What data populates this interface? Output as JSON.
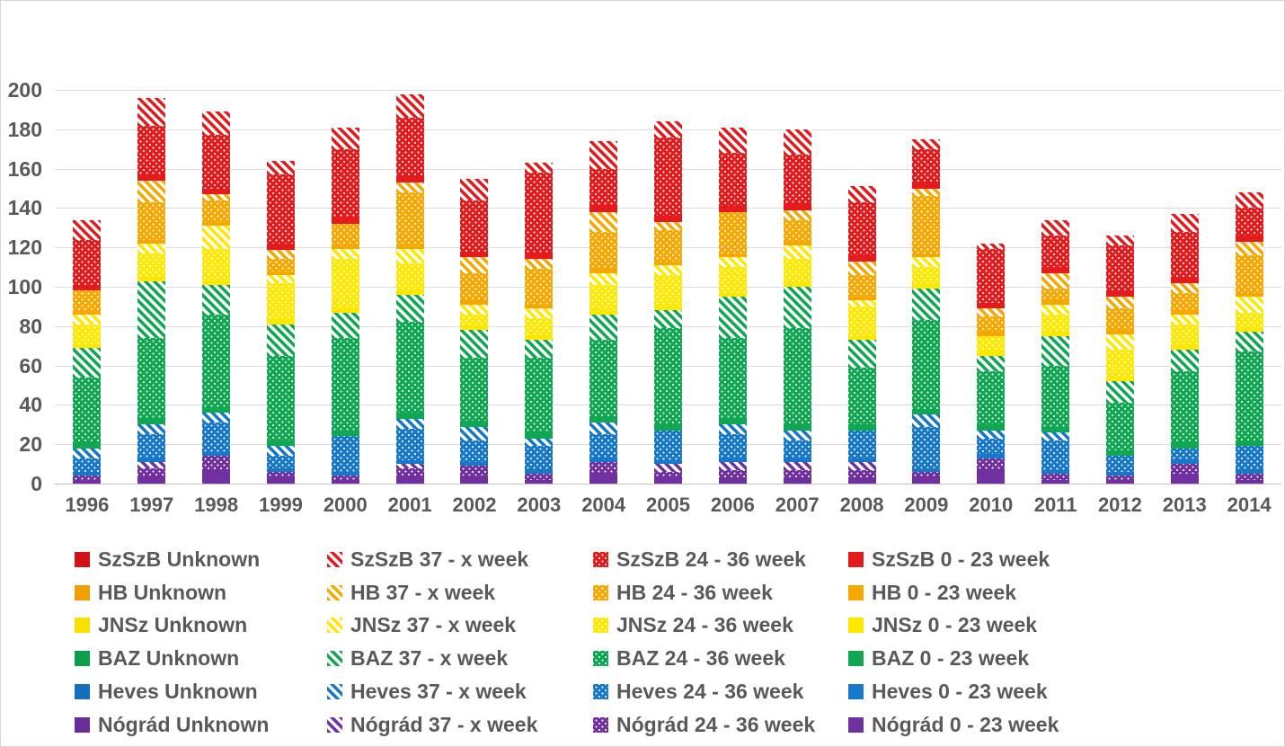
{
  "chart_data": {
    "type": "bar",
    "stacked": true,
    "title": "",
    "xlabel": "",
    "ylabel": "",
    "x": [
      "1996",
      "1997",
      "1998",
      "1999",
      "2000",
      "2001",
      "2002",
      "2003",
      "2004",
      "2005",
      "2006",
      "2007",
      "2008",
      "2009",
      "2010",
      "2011",
      "2012",
      "2013",
      "2014"
    ],
    "y_axis": {
      "min": 0,
      "max": 200,
      "ticks": [
        0,
        20,
        40,
        60,
        80,
        100,
        120,
        140,
        160,
        180,
        200
      ]
    },
    "grid": true,
    "legend_position": "bottom",
    "stack_note": "segments stack bottom-to-top in reverse legend order (Nógrád 0-23 at bottom, SzSzB Unknown at top)",
    "bar_totals": [
      134,
      196,
      189,
      164,
      181,
      198,
      155,
      163,
      174,
      184,
      181,
      180,
      151,
      175,
      122,
      134,
      126,
      137,
      148
    ],
    "series": [
      {
        "name": "SzSzB Unknown",
        "county": "SzSzB",
        "category": "Unknown",
        "pattern": "solid",
        "color": "#d31016",
        "values": [
          0,
          0,
          0,
          0,
          0,
          0,
          0,
          0,
          0,
          0,
          0,
          0,
          0,
          0,
          0,
          0,
          0,
          0,
          0
        ]
      },
      {
        "name": "SzSzB 37 - x week",
        "county": "SzSzB",
        "category": "37 - x week",
        "pattern": "stripe",
        "color": "#e41a1c",
        "values": [
          10,
          14,
          12,
          7,
          11,
          12,
          11,
          5,
          14,
          8,
          13,
          13,
          8,
          5,
          3,
          8,
          5,
          9,
          8
        ]
      },
      {
        "name": "SzSzB 24 - 36 week",
        "county": "SzSzB",
        "category": "24 - 36 week",
        "pattern": "dot",
        "color": "#e41a1c",
        "values": [
          23,
          25,
          27,
          35,
          35,
          30,
          26,
          41,
          19,
          40,
          27,
          25,
          27,
          17,
          27,
          16,
          23,
          23,
          14
        ]
      },
      {
        "name": "SzSzB 0 - 23 week",
        "county": "SzSzB",
        "category": "0 - 23 week",
        "pattern": "solid",
        "color": "#e41a1c",
        "values": [
          3,
          3,
          3,
          3,
          3,
          3,
          3,
          3,
          3,
          3,
          3,
          3,
          3,
          3,
          3,
          3,
          3,
          3,
          3
        ]
      },
      {
        "name": "HB Unknown",
        "county": "HB",
        "category": "Unknown",
        "pattern": "solid",
        "color": "#f09e00",
        "values": [
          0,
          0,
          0,
          0,
          0,
          0,
          0,
          0,
          0,
          0,
          0,
          0,
          0,
          0,
          0,
          0,
          0,
          0,
          0
        ]
      },
      {
        "name": "HB 37 - x week",
        "county": "HB",
        "category": "37 - x week",
        "pattern": "stripe",
        "color": "#f6a800",
        "values": [
          0,
          11,
          3,
          5,
          0,
          5,
          8,
          5,
          10,
          4,
          0,
          5,
          7,
          4,
          4,
          8,
          6,
          5,
          7
        ]
      },
      {
        "name": "HB 24 - 36 week",
        "county": "HB",
        "category": "24 - 36 week",
        "pattern": "dot",
        "color": "#f6a800",
        "values": [
          10,
          19,
          11,
          6,
          11,
          27,
          14,
          18,
          19,
          16,
          21,
          11,
          11,
          29,
          8,
          6,
          11,
          9,
          19
        ]
      },
      {
        "name": "HB 0 - 23 week",
        "county": "HB",
        "category": "0 - 23 week",
        "pattern": "solid",
        "color": "#f6a800",
        "values": [
          2,
          2,
          2,
          2,
          2,
          2,
          2,
          2,
          2,
          2,
          2,
          2,
          2,
          2,
          2,
          2,
          2,
          2,
          2
        ]
      },
      {
        "name": "JNSz Unknown",
        "county": "JNSz",
        "category": "Unknown",
        "pattern": "solid",
        "color": "#f7df00",
        "values": [
          0,
          0,
          0,
          0,
          0,
          0,
          0,
          0,
          0,
          0,
          0,
          0,
          0,
          0,
          0,
          0,
          0,
          0,
          0
        ]
      },
      {
        "name": "JNSz 37 - x week",
        "county": "JNSz",
        "category": "37 - x week",
        "pattern": "stripe",
        "color": "#ffe800",
        "values": [
          5,
          5,
          12,
          4,
          5,
          7,
          5,
          5,
          6,
          5,
          5,
          7,
          3,
          5,
          0,
          5,
          8,
          5,
          8
        ]
      },
      {
        "name": "JNSz 24 - 36 week",
        "county": "JNSz",
        "category": "24 - 36 week",
        "pattern": "dot",
        "color": "#ffe800",
        "values": [
          10,
          12,
          16,
          19,
          25,
          14,
          6,
          9,
          13,
          16,
          13,
          12,
          15,
          9,
          8,
          9,
          14,
          11,
          8
        ]
      },
      {
        "name": "JNSz 0 - 23 week",
        "county": "JNSz",
        "category": "0 - 23 week",
        "pattern": "solid",
        "color": "#ffe800",
        "values": [
          2,
          2,
          2,
          2,
          2,
          2,
          2,
          2,
          2,
          2,
          2,
          2,
          2,
          2,
          2,
          2,
          2,
          2,
          2
        ]
      },
      {
        "name": "BAZ Unknown",
        "county": "BAZ",
        "category": "Unknown",
        "pattern": "solid",
        "color": "#0d9e4c",
        "values": [
          0,
          0,
          0,
          0,
          0,
          0,
          0,
          0,
          0,
          0,
          0,
          0,
          0,
          0,
          0,
          0,
          0,
          0,
          0
        ]
      },
      {
        "name": "BAZ 37 - x week",
        "county": "BAZ",
        "category": "37 - x week",
        "pattern": "stripe",
        "color": "#0fa751",
        "values": [
          15,
          29,
          15,
          16,
          13,
          14,
          14,
          9,
          13,
          9,
          21,
          21,
          14,
          16,
          8,
          15,
          11,
          11,
          10
        ]
      },
      {
        "name": "BAZ 24 - 36 week",
        "county": "BAZ",
        "category": "24 - 36 week",
        "pattern": "dot",
        "color": "#0fa751",
        "values": [
          33,
          41,
          47,
          43,
          47,
          46,
          32,
          38,
          39,
          49,
          41,
          49,
          29,
          45,
          27,
          31,
          24,
          36,
          45
        ]
      },
      {
        "name": "BAZ 0 - 23 week",
        "county": "BAZ",
        "category": "0 - 23 week",
        "pattern": "solid",
        "color": "#0fa751",
        "values": [
          3,
          3,
          3,
          3,
          3,
          3,
          3,
          3,
          3,
          3,
          3,
          3,
          3,
          3,
          3,
          3,
          3,
          3,
          3
        ]
      },
      {
        "name": "Heves Unknown",
        "county": "Heves",
        "category": "Unknown",
        "pattern": "solid",
        "color": "#1470bd",
        "values": [
          0,
          0,
          0,
          0,
          0,
          0,
          0,
          0,
          0,
          0,
          0,
          0,
          0,
          0,
          0,
          0,
          0,
          0,
          0
        ]
      },
      {
        "name": "Heves 37 - x week",
        "county": "Heves",
        "category": "37 - x week",
        "pattern": "stripe",
        "color": "#1777c8",
        "values": [
          5,
          5,
          5,
          5,
          0,
          5,
          7,
          4,
          6,
          0,
          5,
          5,
          0,
          6,
          4,
          4,
          0,
          0,
          0
        ]
      },
      {
        "name": "Heves 24 - 36 week",
        "county": "Heves",
        "category": "24 - 36 week",
        "pattern": "dot",
        "color": "#1777c8",
        "values": [
          7,
          12,
          15,
          6,
          18,
          16,
          11,
          12,
          12,
          15,
          12,
          9,
          14,
          21,
          8,
          15,
          8,
          6,
          12
        ]
      },
      {
        "name": "Heves 0 - 23 week",
        "county": "Heves",
        "category": "0 - 23 week",
        "pattern": "solid",
        "color": "#1777c8",
        "values": [
          2,
          2,
          2,
          2,
          2,
          2,
          2,
          2,
          2,
          2,
          2,
          2,
          2,
          2,
          2,
          2,
          2,
          2,
          2
        ]
      },
      {
        "name": "Nógrád Unknown",
        "county": "Nógrád",
        "category": "Unknown",
        "pattern": "solid",
        "color": "#6a2d99",
        "values": [
          0,
          0,
          0,
          0,
          0,
          0,
          0,
          0,
          0,
          0,
          0,
          0,
          0,
          0,
          0,
          0,
          0,
          0,
          0
        ]
      },
      {
        "name": "Nógrád 37 - x week",
        "county": "Nógrád",
        "category": "37 - x week",
        "pattern": "stripe",
        "color": "#7030a0",
        "values": [
          0,
          3,
          0,
          0,
          0,
          2,
          0,
          0,
          0,
          4,
          4,
          4,
          4,
          0,
          0,
          0,
          0,
          0,
          0
        ]
      },
      {
        "name": "Nógrád 24 - 36 week",
        "county": "Nógrád",
        "category": "24 - 36 week",
        "pattern": "dot",
        "color": "#7030a0",
        "values": [
          2,
          4,
          7,
          3,
          2,
          4,
          5,
          3,
          6,
          3,
          4,
          4,
          4,
          3,
          6,
          3,
          2,
          5,
          3
        ]
      },
      {
        "name": "Nógrád 0 - 23 week",
        "county": "Nógrád",
        "category": "0 - 23 week",
        "pattern": "solid",
        "color": "#7030a0",
        "values": [
          2,
          4,
          7,
          3,
          2,
          4,
          4,
          2,
          5,
          3,
          3,
          3,
          3,
          3,
          7,
          2,
          2,
          5,
          2
        ]
      }
    ]
  },
  "style_colors": {
    "axis_label_text": "#595959",
    "legend_text": "#595959",
    "gridline": "#dadada",
    "background": "#ffffff"
  }
}
